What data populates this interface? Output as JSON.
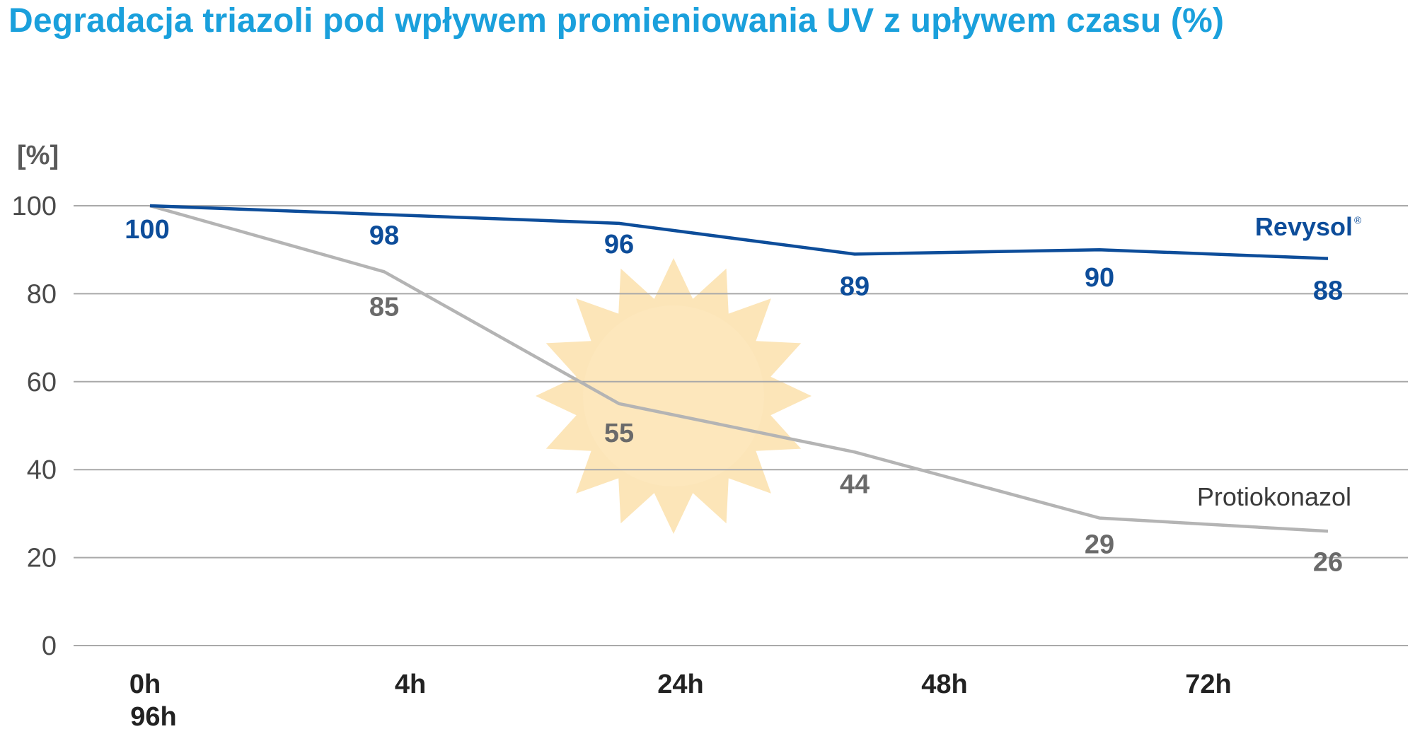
{
  "title": "Degradacja triazoli pod wpływem promieniowania UV z upływem czasu (%)",
  "colors": {
    "title": "#1aa0dc",
    "revysol": "#0d4d9a",
    "protiokonazol_line": "#b4b4b4",
    "protiokonazol_labels": "#6a6a6a",
    "protiokonazol_name": "#3a3a3a",
    "grid": "#a9a9a9",
    "sun": "#fbdca0"
  },
  "chart_data": {
    "type": "line",
    "title": "Degradacja triazoli pod wpływem promieniowania UV z upływem czasu (%)",
    "ylabel": "[%]",
    "xlabel": "",
    "ylim": [
      0,
      100
    ],
    "yticks": [
      "0",
      "20",
      "40",
      "60",
      "80",
      "100"
    ],
    "x_tick_labels": [
      "0h",
      "4h",
      "24h",
      "48h",
      "72h"
    ],
    "x_tick_extra_label": "96h",
    "grid": true,
    "decoration": "sun-icon",
    "series": [
      {
        "name": "Revysol",
        "name_mark": "®",
        "values": [
          100,
          98,
          96,
          89,
          90,
          88
        ],
        "labels": [
          "100",
          "98",
          "96",
          "89",
          "90",
          "88"
        ]
      },
      {
        "name": "Protiokonazol",
        "values": [
          100,
          85,
          55,
          44,
          29,
          26
        ],
        "labels": [
          "",
          "85",
          "55",
          "44",
          "29",
          "26"
        ]
      }
    ]
  }
}
